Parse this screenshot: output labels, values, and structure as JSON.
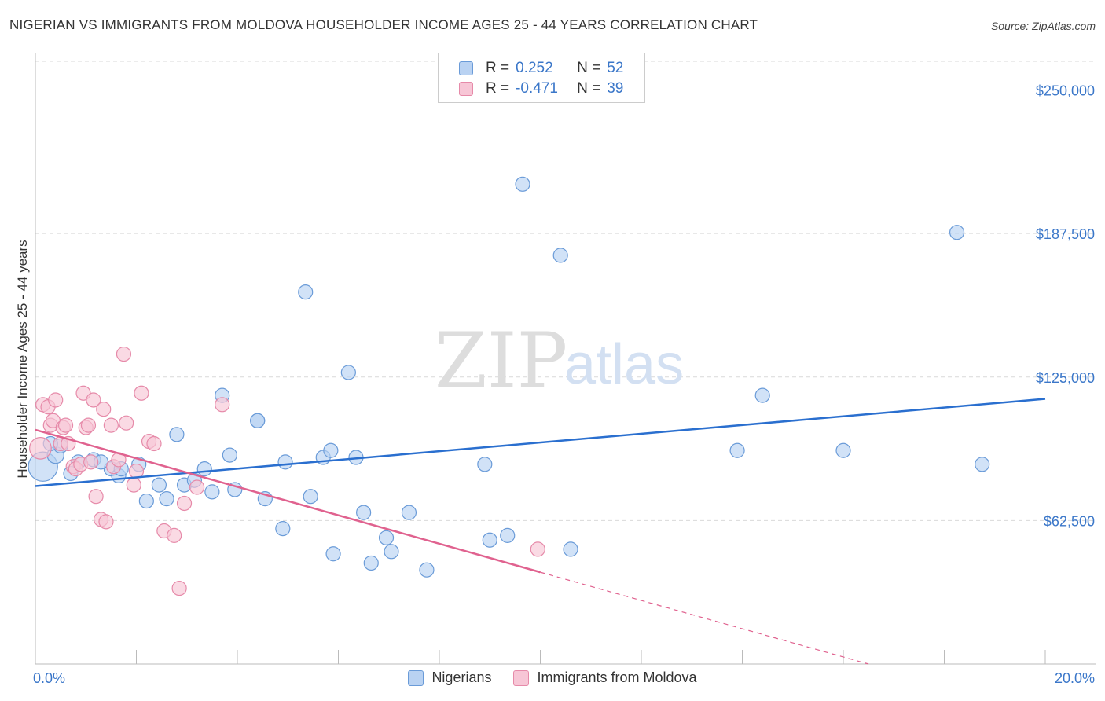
{
  "title": "NIGERIAN VS IMMIGRANTS FROM MOLDOVA HOUSEHOLDER INCOME AGES 25 - 44 YEARS CORRELATION CHART",
  "source": "Source: ZipAtlas.com",
  "watermark": {
    "zip": "ZIP",
    "atlas": "atlas"
  },
  "legend": {
    "rows": [
      {
        "r_label": "R =",
        "r_value": "0.252",
        "n_label": "N =",
        "n_value": "52"
      },
      {
        "r_label": "R =",
        "r_value": "-0.471",
        "n_label": "N =",
        "n_value": "39"
      }
    ]
  },
  "colors": {
    "nigerians_fill": "#b9d2f2",
    "nigerians_stroke": "#6a9bd8",
    "nigerians_line": "#2a6fcf",
    "moldova_fill": "#f7c6d6",
    "moldova_stroke": "#e68aa9",
    "moldova_line": "#e0628f",
    "tick_text": "#3b77c9",
    "grid": "#d9d9d9"
  },
  "chart_data": {
    "type": "scatter",
    "title": "NIGERIAN VS IMMIGRANTS FROM MOLDOVA HOUSEHOLDER INCOME AGES 25 - 44 YEARS CORRELATION CHART",
    "xlabel": "",
    "ylabel": "Householder Income Ages 25 - 44 years",
    "xlim": [
      0,
      20
    ],
    "ylim": [
      0,
      262500
    ],
    "x_tick_labels": [
      "0.0%",
      "20.0%"
    ],
    "y_ticks": [
      62500,
      125000,
      187500,
      250000
    ],
    "y_tick_labels": [
      "$62,500",
      "$125,000",
      "$187,500",
      "$250,000"
    ],
    "grid": true,
    "legend_placement": "top-center",
    "series": [
      {
        "name": "Nigerians",
        "r": 0.252,
        "n": 52,
        "trend": {
          "x0": 0,
          "y0": 77500,
          "x1": 20,
          "y1": 115500
        },
        "points": [
          [
            0.15,
            86000,
            22
          ],
          [
            0.4,
            91000,
            12
          ],
          [
            0.5,
            95000,
            10
          ],
          [
            0.7,
            83000,
            10
          ],
          [
            0.85,
            88000,
            10
          ],
          [
            1.15,
            89000,
            10
          ],
          [
            1.5,
            85000,
            10
          ],
          [
            1.65,
            82000,
            10
          ],
          [
            2.05,
            87000,
            10
          ],
          [
            2.2,
            71000,
            10
          ],
          [
            2.45,
            78000,
            10
          ],
          [
            2.6,
            72000,
            10
          ],
          [
            2.8,
            100000,
            10
          ],
          [
            2.95,
            78000,
            10
          ],
          [
            3.15,
            80000,
            10
          ],
          [
            3.35,
            85000,
            10
          ],
          [
            3.5,
            75000,
            10
          ],
          [
            3.7,
            117000,
            10
          ],
          [
            3.85,
            91000,
            10
          ],
          [
            3.95,
            76000,
            10
          ],
          [
            4.4,
            106000,
            10
          ],
          [
            4.4,
            106000,
            10
          ],
          [
            4.55,
            72000,
            10
          ],
          [
            4.9,
            59000,
            10
          ],
          [
            4.95,
            88000,
            10
          ],
          [
            5.35,
            162000,
            10
          ],
          [
            5.45,
            73000,
            10
          ],
          [
            5.7,
            90000,
            10
          ],
          [
            5.85,
            93000,
            10
          ],
          [
            5.9,
            48000,
            10
          ],
          [
            6.2,
            127000,
            10
          ],
          [
            6.35,
            90000,
            10
          ],
          [
            6.5,
            66000,
            10
          ],
          [
            6.65,
            44000,
            10
          ],
          [
            6.95,
            55000,
            10
          ],
          [
            7.05,
            49000,
            10
          ],
          [
            7.4,
            66000,
            10
          ],
          [
            7.75,
            41000,
            10
          ],
          [
            8.9,
            87000,
            10
          ],
          [
            9.0,
            54000,
            10
          ],
          [
            9.35,
            56000,
            10
          ],
          [
            9.65,
            209000,
            10
          ],
          [
            10.4,
            178000,
            10
          ],
          [
            10.6,
            50000,
            10
          ],
          [
            13.9,
            93000,
            10
          ],
          [
            14.4,
            117000,
            10
          ],
          [
            16.0,
            93000,
            10
          ],
          [
            18.25,
            188000,
            10
          ],
          [
            18.75,
            87000,
            10
          ],
          [
            0.3,
            96000,
            10
          ],
          [
            1.3,
            88000,
            10
          ],
          [
            1.7,
            85000,
            10
          ]
        ]
      },
      {
        "name": "Immigrants from Moldova",
        "r": -0.471,
        "n": 39,
        "trend": {
          "x0": 0,
          "y0": 102000,
          "x1": 10,
          "y1": 40000
        },
        "trend_extension": {
          "x0": 10,
          "y0": 40000,
          "x1": 16.5,
          "y1": 0
        },
        "points": [
          [
            0.1,
            94000,
            16
          ],
          [
            0.15,
            113000,
            10
          ],
          [
            0.25,
            112000,
            10
          ],
          [
            0.3,
            104000,
            10
          ],
          [
            0.35,
            106000,
            10
          ],
          [
            0.4,
            115000,
            10
          ],
          [
            0.5,
            96000,
            10
          ],
          [
            0.55,
            103000,
            10
          ],
          [
            0.6,
            104000,
            10
          ],
          [
            0.75,
            86000,
            10
          ],
          [
            0.8,
            85000,
            10
          ],
          [
            0.9,
            87000,
            10
          ],
          [
            0.95,
            118000,
            10
          ],
          [
            1.0,
            103000,
            10
          ],
          [
            1.05,
            104000,
            10
          ],
          [
            1.1,
            88000,
            10
          ],
          [
            1.15,
            115000,
            10
          ],
          [
            1.2,
            73000,
            10
          ],
          [
            1.3,
            63000,
            10
          ],
          [
            1.35,
            111000,
            10
          ],
          [
            1.4,
            62000,
            10
          ],
          [
            1.5,
            104000,
            10
          ],
          [
            1.55,
            86000,
            10
          ],
          [
            1.65,
            89000,
            10
          ],
          [
            1.75,
            135000,
            10
          ],
          [
            1.8,
            105000,
            10
          ],
          [
            1.95,
            78000,
            10
          ],
          [
            2.0,
            84000,
            10
          ],
          [
            2.1,
            118000,
            10
          ],
          [
            2.25,
            97000,
            10
          ],
          [
            2.35,
            96000,
            10
          ],
          [
            2.55,
            58000,
            10
          ],
          [
            2.75,
            56000,
            10
          ],
          [
            2.85,
            33000,
            10
          ],
          [
            2.95,
            70000,
            10
          ],
          [
            3.2,
            77000,
            10
          ],
          [
            3.7,
            113000,
            10
          ],
          [
            9.95,
            50000,
            10
          ],
          [
            0.65,
            96000,
            10
          ]
        ]
      }
    ]
  },
  "bottom_legend": [
    "Nigerians",
    "Immigrants from Moldova"
  ]
}
